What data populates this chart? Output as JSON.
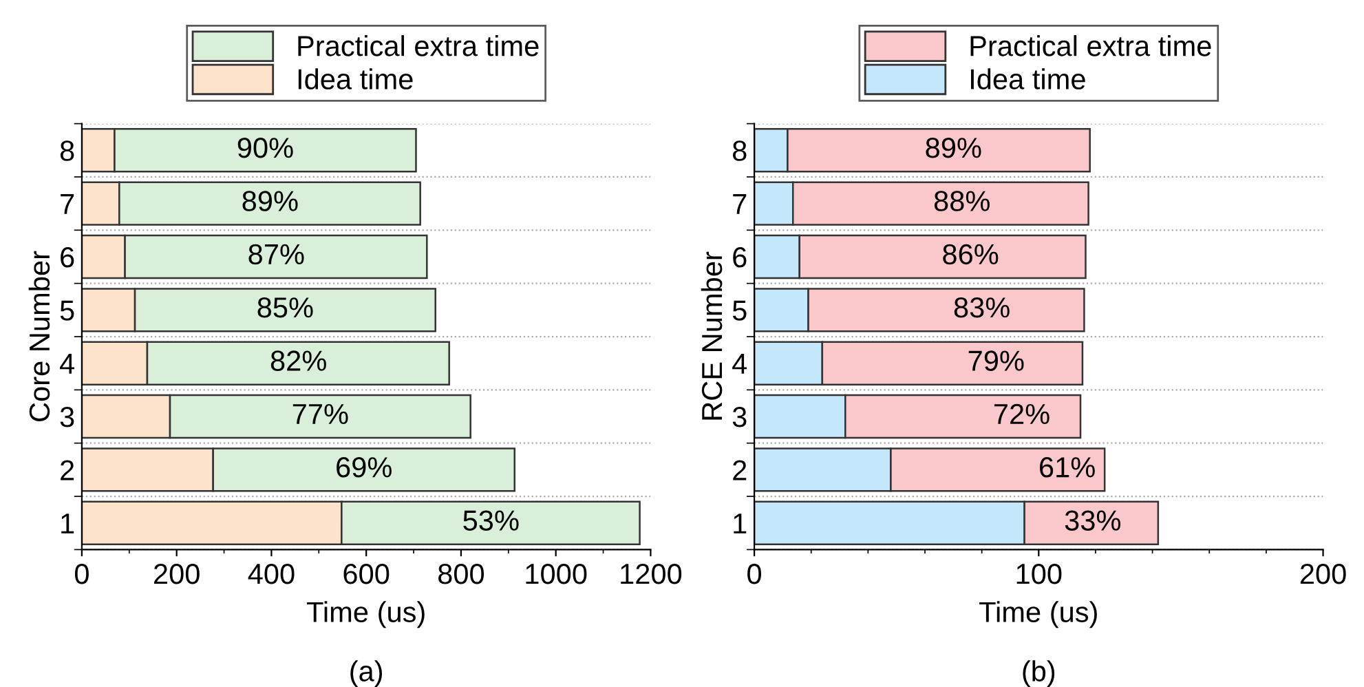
{
  "chart_data": [
    {
      "type": "bar",
      "orientation": "horizontal",
      "stacked": true,
      "categories": [
        "8",
        "7",
        "6",
        "5",
        "4",
        "3",
        "2",
        "1"
      ],
      "xlabel": "Time (us)",
      "ylabel": "Core Number",
      "xlim": [
        0,
        1200
      ],
      "xticks": [
        0,
        200,
        400,
        600,
        800,
        1000,
        1200
      ],
      "grid": "y",
      "legend": "top",
      "annotations": [
        "(a)",
        {
          "text": "90%",
          "x": 387,
          "y": "8"
        },
        {
          "text": "89%",
          "x": 397,
          "y": "7"
        },
        {
          "text": "87%",
          "x": 410,
          "y": "6"
        },
        {
          "text": "85%",
          "x": 429,
          "y": "5"
        },
        {
          "text": "82%",
          "x": 457,
          "y": "4"
        },
        {
          "text": "77%",
          "x": 503,
          "y": "3"
        },
        {
          "text": "69%",
          "x": 595,
          "y": "2"
        },
        {
          "text": "53%",
          "x": 863,
          "y": "1"
        }
      ],
      "series": [
        {
          "name": "Idea time",
          "color": "#fde3cb",
          "values": [
            69,
            79,
            91,
            112,
            138,
            186,
            277,
            548
          ]
        },
        {
          "name": "Practical extra time",
          "color": "#d9efd9",
          "values": [
            636,
            635,
            637,
            634,
            637,
            634,
            636,
            629
          ]
        }
      ]
    },
    {
      "type": "bar",
      "orientation": "horizontal",
      "stacked": true,
      "categories": [
        "8",
        "7",
        "6",
        "5",
        "4",
        "3",
        "2",
        "1"
      ],
      "xlabel": "Time (us)",
      "ylabel": "RCE Number",
      "xlim": [
        0,
        200
      ],
      "xticks": [
        0,
        100,
        200
      ],
      "grid": "y",
      "legend": "top",
      "annotations": [
        "(b)",
        {
          "text": "89%",
          "x": 70,
          "y": "8"
        },
        {
          "text": "88%",
          "x": 73,
          "y": "7"
        },
        {
          "text": "86%",
          "x": 76,
          "y": "6"
        },
        {
          "text": "83%",
          "x": 80,
          "y": "5"
        },
        {
          "text": "79%",
          "x": 85,
          "y": "4"
        },
        {
          "text": "72%",
          "x": 94,
          "y": "3"
        },
        {
          "text": "61%",
          "x": 110,
          "y": "2"
        },
        {
          "text": "33%",
          "x": 119,
          "y": "1"
        }
      ],
      "series": [
        {
          "name": "Idea time",
          "color": "#c5e7fb",
          "values": [
            11.7,
            13.6,
            15.9,
            19,
            23.9,
            32,
            48,
            95
          ]
        },
        {
          "name": "Practical extra time",
          "color": "#fac8cb",
          "values": [
            106.3,
            103.9,
            100.6,
            97,
            91.5,
            82.7,
            75.2,
            47
          ]
        }
      ]
    }
  ]
}
